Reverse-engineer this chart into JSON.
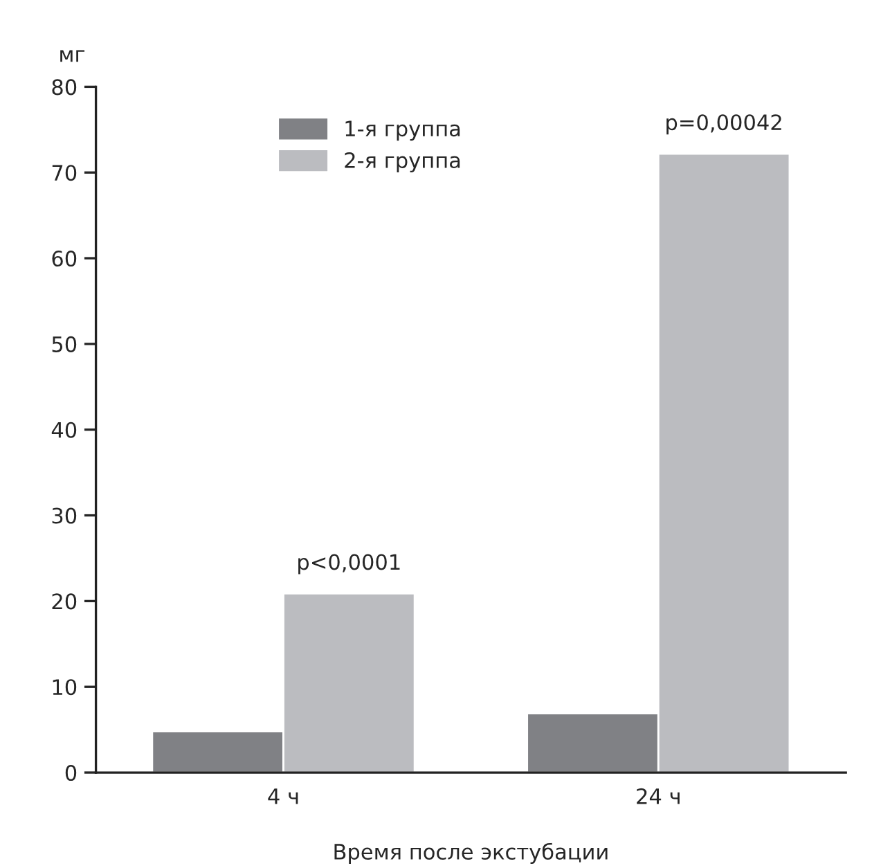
{
  "chart_data": {
    "type": "bar",
    "ylabel": "мг",
    "xlabel": "Время после экстубации",
    "categories": [
      "4 ч",
      "24 ч"
    ],
    "series": [
      {
        "name": "1-я группа",
        "color": "#808185",
        "values": [
          4.8,
          6.9
        ]
      },
      {
        "name": "2-я группа",
        "color": "#bbbcc0",
        "values": [
          20.9,
          72.2
        ]
      }
    ],
    "annotations": [
      {
        "text": "p<0,0001",
        "x": "4 ч",
        "y": 20.9
      },
      {
        "text": "p=0,00042",
        "x": "24 ч",
        "y": 72.2
      }
    ],
    "ylim": [
      0,
      80
    ],
    "yticks": [
      0,
      10,
      20,
      30,
      40,
      50,
      60,
      70,
      80
    ],
    "legend": "top left",
    "grid": false
  }
}
